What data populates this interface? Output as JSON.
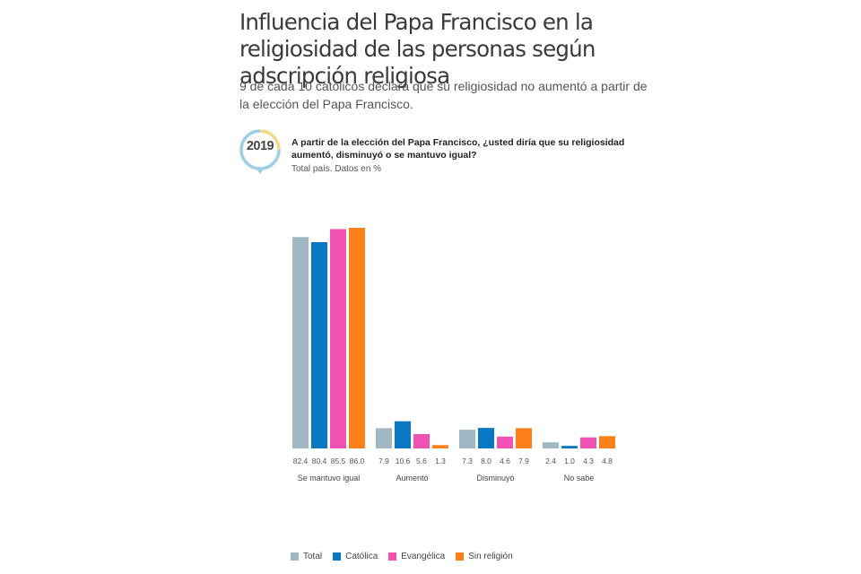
{
  "header": {
    "title": "Influencia del Papa Francisco en la religiosidad de las personas según adscripción religiosa",
    "subtitle": "9 de cada 10 católicos declara que su religiosidad no aumentó a partir de la elección del Papa Francisco."
  },
  "badge": {
    "year": "2019",
    "colors": [
      "#f2d98a",
      "#9fcde4"
    ]
  },
  "question": {
    "text": "A partir de la elección del Papa Francisco, ¿usted diría que su religiosidad aumentó, disminuyó o se mantuvo igual?",
    "note": "Total país. Datos en %"
  },
  "chart_data": {
    "type": "bar",
    "categories": [
      "Se mantuvo igual",
      "Aumentó",
      "Disminuyó",
      "No sabe"
    ],
    "series": [
      {
        "name": "Total",
        "color": "#a2b7c4",
        "values": [
          82.4,
          7.9,
          7.3,
          2.4
        ],
        "labels": [
          "82.4",
          "7.9",
          "7.3",
          "2.4"
        ]
      },
      {
        "name": "Católica",
        "color": "#0a77c2",
        "values": [
          80.4,
          10.6,
          8.0,
          1.0
        ],
        "labels": [
          "80.4",
          "10.6",
          "8.0",
          "1.0"
        ]
      },
      {
        "name": "Evangélica",
        "color": "#f051b3",
        "values": [
          85.5,
          5.6,
          4.6,
          4.3
        ],
        "labels": [
          "85.5",
          "5.6",
          "4.6",
          "4.3"
        ]
      },
      {
        "name": "Sin religión",
        "color": "#fc7f19",
        "values": [
          86.0,
          1.3,
          7.9,
          4.8
        ],
        "labels": [
          "86.0",
          "1.3",
          "7.9",
          "4.8"
        ]
      }
    ],
    "ylim": [
      0,
      86
    ],
    "grid": false,
    "legend": "bottom-left"
  }
}
